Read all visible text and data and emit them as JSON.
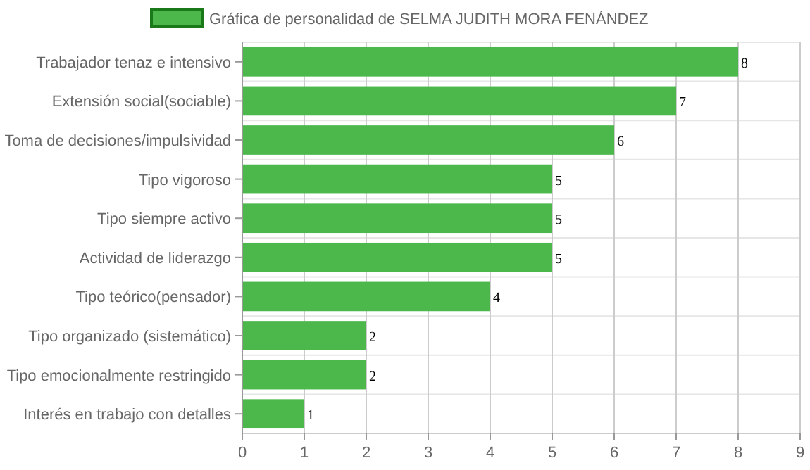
{
  "chart_data": {
    "type": "bar",
    "orientation": "horizontal",
    "categories": [
      "Trabajador tenaz e intensivo",
      "Extensión social(sociable)",
      "Toma de decisiones/impulsividad",
      "Tipo vigoroso",
      "Tipo siempre activo",
      "Actividad de liderazgo",
      "Tipo teórico(pensador)",
      "Tipo organizado (sistemático)",
      "Tipo emocionalmente restringido",
      "Interés en trabajo con detalles"
    ],
    "series": [
      {
        "name": "Gráfica de personalidad de SELMA JUDITH MORA FENÁNDEZ",
        "color": "#4cb84c",
        "values": [
          8,
          7,
          6,
          5,
          5,
          5,
          4,
          2,
          2,
          1
        ]
      }
    ],
    "xlim": [
      0,
      9
    ],
    "xticks": [
      0,
      1,
      2,
      3,
      4,
      5,
      6,
      7,
      8,
      9
    ],
    "grid": true,
    "legend": "top",
    "data_labels": true
  }
}
